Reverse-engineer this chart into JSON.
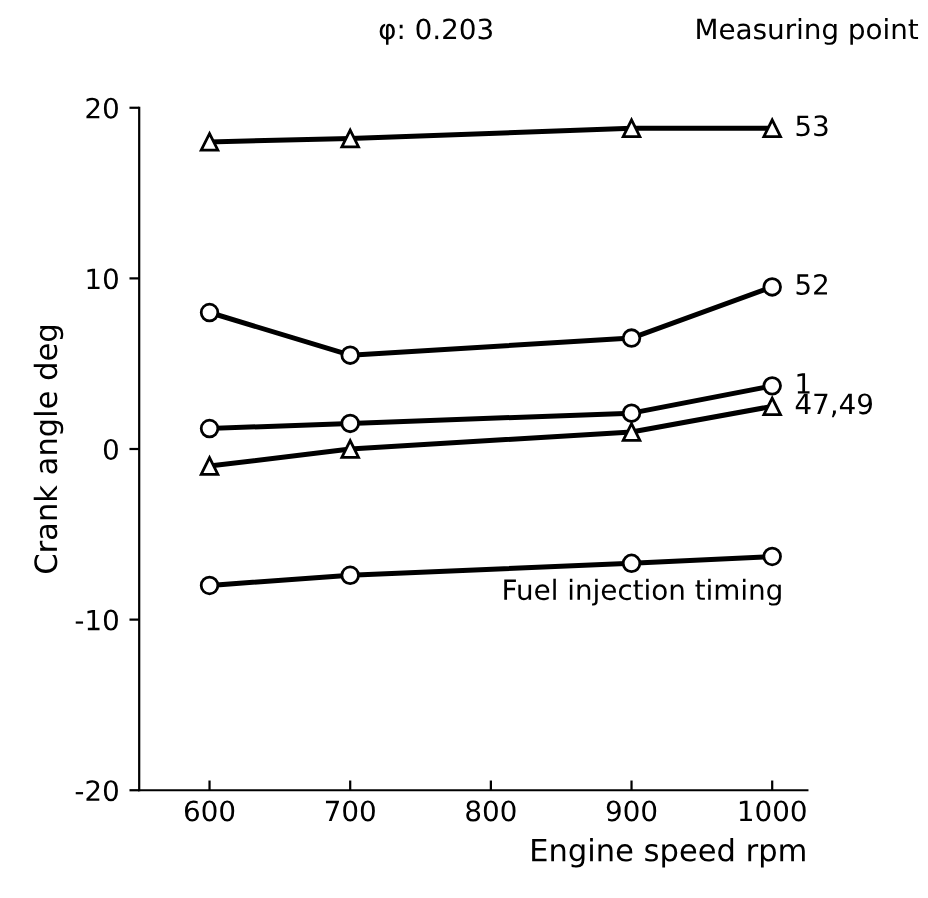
{
  "chart_data": {
    "type": "line",
    "xlabel": "Engine speed rpm",
    "ylabel": "Crank angle deg",
    "annotations": [
      "φ: 0.203",
      "Measuring point"
    ],
    "x": [
      600,
      700,
      900,
      1000
    ],
    "series": [
      {
        "name": "53",
        "color": "#000000",
        "marker": "triangle",
        "values": [
          18,
          18.2,
          18.8,
          18.8
        ]
      },
      {
        "name": "52",
        "color": "#000000",
        "marker": "circle",
        "values": [
          8,
          5.5,
          6.5,
          9.5
        ]
      },
      {
        "name": "1",
        "color": "#000000",
        "marker": "circle",
        "values": [
          1.2,
          1.5,
          2.1,
          3.7
        ]
      },
      {
        "name": "47,49",
        "color": "#000000",
        "marker": "triangle",
        "values": [
          -1,
          0,
          1,
          2.5
        ]
      },
      {
        "name": "Fuel injection timing",
        "color": "#000000",
        "marker": "circle",
        "values": [
          -8,
          -7.4,
          -6.7,
          -6.3
        ]
      }
    ],
    "xlim": [
      550,
      1025
    ],
    "ylim": [
      -20,
      20
    ],
    "xticks": [
      600,
      700,
      800,
      900,
      1000
    ],
    "yticks": [
      -20,
      -10,
      0,
      10,
      20
    ],
    "grid": false,
    "legend": false,
    "line_style": "solid"
  }
}
